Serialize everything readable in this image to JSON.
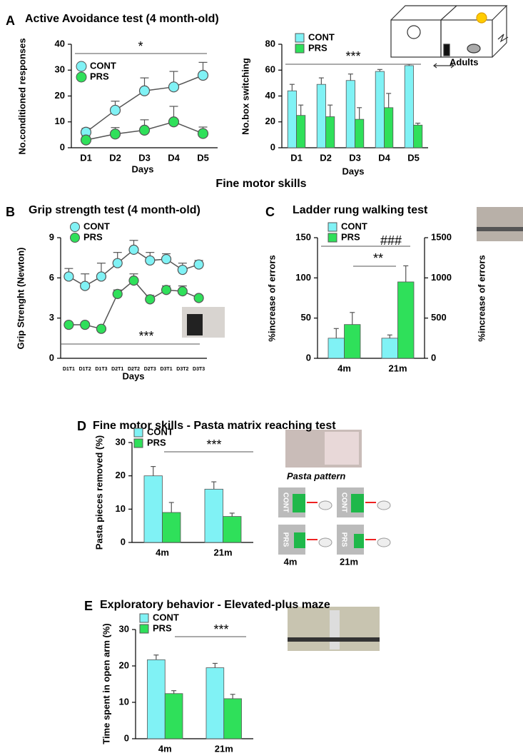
{
  "chart_data": [
    {
      "type": "line",
      "panel_label": "A",
      "title": "Active Avoidance test (4 month-old)",
      "ylabel": "No.conditioned responses",
      "xlabel": "Days",
      "categories": [
        "D1",
        "D2",
        "D3",
        "D4",
        "D5"
      ],
      "series": [
        {
          "name": "CONT",
          "color": "#80f2f5",
          "values": [
            6,
            14.5,
            22,
            23.5,
            28
          ],
          "errors": [
            1.5,
            3.5,
            5,
            6,
            5
          ]
        },
        {
          "name": "PRS",
          "color": "#2fe05a",
          "values": [
            3,
            5.3,
            6.8,
            10,
            5.5
          ],
          "errors": [
            1.5,
            2.5,
            4,
            6,
            2.5
          ]
        }
      ],
      "ylim": [
        0,
        40
      ],
      "yticks": [
        0,
        10,
        20,
        30,
        40
      ],
      "legend": "upper left",
      "annotations": [
        "*"
      ]
    },
    {
      "type": "bar",
      "ylabel": "No.box switching",
      "xlabel": "Days",
      "categories": [
        "D1",
        "D2",
        "D3",
        "D4",
        "D5"
      ],
      "series": [
        {
          "name": "CONT",
          "color": "#80f2f5",
          "values": [
            44,
            49,
            52,
            59,
            63.5
          ],
          "errors": [
            5,
            5,
            5,
            1.5,
            1
          ]
        },
        {
          "name": "PRS",
          "color": "#2fe05a",
          "values": [
            25,
            24,
            22,
            31,
            17.5
          ],
          "errors": [
            8,
            9,
            9,
            11,
            1.5
          ]
        }
      ],
      "ylim": [
        0,
        80
      ],
      "yticks": [
        0,
        20,
        40,
        60,
        80
      ],
      "legend": "upper left",
      "annotations": [
        "***"
      ]
    },
    {
      "type": "line",
      "panel_label": "B",
      "title": "Grip strength test (4 month-old)",
      "ylabel": "Grip Strenght (Newton)",
      "xlabel": "Days",
      "categories": [
        "D1T1",
        "D1T2",
        "D1T3",
        "D2T1",
        "D2T2",
        "D2T3",
        "D3T1",
        "D3T2",
        "D3T3"
      ],
      "series": [
        {
          "name": "CONT",
          "color": "#80f2f5",
          "values": [
            6.1,
            5.4,
            6.1,
            7.1,
            8.1,
            7.3,
            7.4,
            6.6,
            7.0
          ],
          "errors": [
            0.6,
            0.9,
            1.0,
            0.8,
            0.7,
            0.6,
            0.4,
            0.5,
            0.3
          ]
        },
        {
          "name": "PRS",
          "color": "#2fe05a",
          "values": [
            2.5,
            2.5,
            2.2,
            4.8,
            5.8,
            4.4,
            5.1,
            5.0,
            4.5
          ],
          "errors": [
            0.1,
            0.1,
            0.1,
            0.3,
            0.5,
            0.3,
            0.3,
            0.4,
            0.2
          ]
        }
      ],
      "ylim": [
        0,
        9
      ],
      "yticks": [
        0,
        3,
        6,
        9
      ],
      "legend": "upper left",
      "annotations": [
        "***"
      ]
    },
    {
      "type": "bar",
      "panel_label": "C",
      "title": "Ladder rung walking test",
      "ylabel": "%increase of errors",
      "y2label": "%increase of errors",
      "categories": [
        "4m",
        "21m"
      ],
      "series": [
        {
          "name": "CONT",
          "color": "#80f2f5",
          "values": [
            25,
            25
          ],
          "errors": [
            12,
            4
          ]
        },
        {
          "name": "PRS",
          "color": "#2fe05a",
          "values": [
            42,
            95
          ],
          "errors": [
            15,
            20
          ]
        }
      ],
      "ylim": [
        0,
        150
      ],
      "yticks": [
        0,
        50,
        100,
        150
      ],
      "y2lim": [
        0,
        1500
      ],
      "y2ticks": [
        0,
        500,
        1000,
        1500
      ],
      "legend": "upper left",
      "annotations": [
        "###",
        "**"
      ]
    },
    {
      "type": "bar",
      "panel_label": "D",
      "title": "Fine motor skills  - Pasta matrix reaching test",
      "ylabel": "Pasta pieces removed (%)",
      "categories": [
        "4m",
        "21m"
      ],
      "series": [
        {
          "name": "CONT",
          "color": "#80f2f5",
          "values": [
            20,
            16
          ],
          "errors": [
            2.8,
            2.2
          ]
        },
        {
          "name": "PRS",
          "color": "#2fe05a",
          "values": [
            9,
            7.8
          ],
          "errors": [
            3,
            1
          ]
        }
      ],
      "ylim": [
        0,
        30
      ],
      "yticks": [
        0,
        10,
        20,
        30
      ],
      "legend": "upper left",
      "annotations": [
        "***"
      ]
    },
    {
      "type": "bar",
      "panel_label": "E",
      "title": "Exploratory behavior - Elevated-plus maze",
      "ylabel": "Time spent in open arm (%)",
      "categories": [
        "4m",
        "21m"
      ],
      "series": [
        {
          "name": "CONT",
          "color": "#80f2f5",
          "values": [
            21.7,
            19.5
          ],
          "errors": [
            1.3,
            1.2
          ]
        },
        {
          "name": "PRS",
          "color": "#2fe05a",
          "values": [
            12.4,
            11
          ],
          "errors": [
            0.8,
            1.2
          ]
        }
      ],
      "ylim": [
        0,
        30
      ],
      "yticks": [
        0,
        10,
        20,
        30
      ],
      "legend": "upper left",
      "annotations": [
        "***"
      ]
    }
  ],
  "figure_texts": {
    "section_heading": "Fine motor skills",
    "apparatus_label": "Adults",
    "pasta_pattern": "Pasta pattern",
    "pasta_rows": [
      "CONT",
      "PRS"
    ],
    "pasta_columns": [
      "4m",
      "21m"
    ]
  }
}
